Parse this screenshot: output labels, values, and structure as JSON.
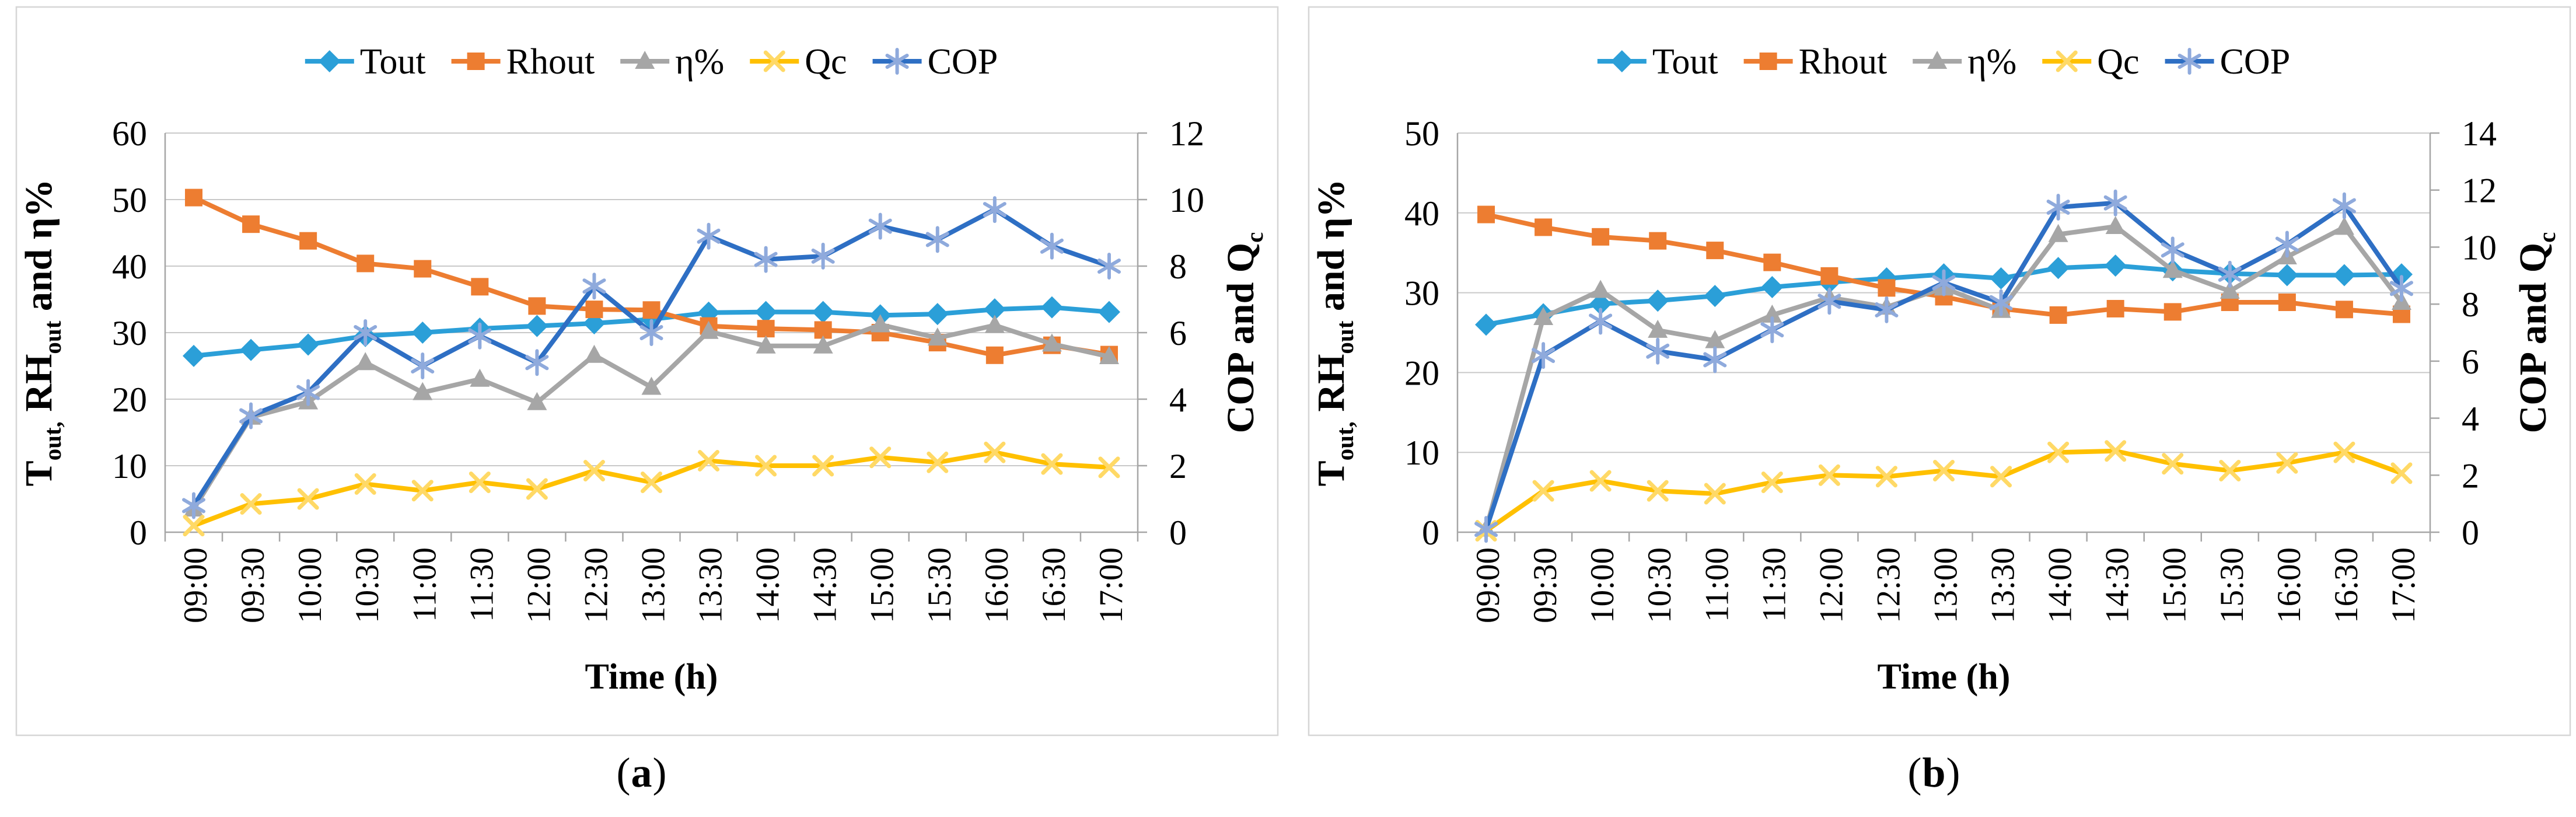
{
  "figure": {
    "captions": [
      {
        "open": "(",
        "letter": "a",
        "close": ")"
      },
      {
        "open": "(",
        "letter": "b",
        "close": ")"
      }
    ]
  },
  "style": {
    "grid_color": "#C9C9C9",
    "axis_color": "#A6A6A6",
    "border_color": "#D6D6D6",
    "text_color": "#000000"
  },
  "chart_data": [
    {
      "type": "line",
      "panel": "a",
      "x_axis_label": "Time (h)",
      "categories": [
        "09:00",
        "09:30",
        "10:00",
        "10:30",
        "11:00",
        "11:30",
        "12:00",
        "12:30",
        "13:00",
        "13:30",
        "14:00",
        "14:30",
        "15:00",
        "15:30",
        "16:00",
        "16:30",
        "17:00"
      ],
      "left_axis": {
        "label": "Tout, RHout and η%",
        "label_parts": [
          {
            "t": "T"
          },
          {
            "t": "out,",
            "sub": true
          },
          {
            "t": " RH"
          },
          {
            "t": "out",
            "sub": true
          },
          {
            "t": " and η%"
          }
        ],
        "min": 0,
        "max": 60,
        "step": 10,
        "ticks": [
          "60",
          "50",
          "40",
          "30",
          "20",
          "10",
          "0"
        ]
      },
      "right_axis": {
        "label": "COP and Qc",
        "label_parts": [
          {
            "t": "COP and Q"
          },
          {
            "t": "c",
            "sub": true
          }
        ],
        "min": 0,
        "max": 12,
        "step": 2,
        "ticks": [
          "12",
          "10",
          "8",
          "6",
          "4",
          "2",
          "0"
        ]
      },
      "legend_position": "top",
      "grid": true,
      "series": [
        {
          "name": "Tout",
          "axis": "left",
          "color": "#2B9FD8",
          "marker": "diamond",
          "marker_color": "#2B9FD8",
          "values": [
            26.5,
            27.4,
            28.2,
            29.5,
            30,
            30.6,
            31,
            31.4,
            32,
            33,
            33.1,
            33.1,
            32.6,
            32.8,
            33.5,
            33.8,
            33.1
          ]
        },
        {
          "name": "Rhout",
          "axis": "left",
          "color": "#ED7D31",
          "marker": "square",
          "marker_color": "#ED7D31",
          "values": [
            50.3,
            46.3,
            43.8,
            40.4,
            39.6,
            36.9,
            34,
            33.5,
            33.4,
            31,
            30.6,
            30.4,
            30,
            28.5,
            26.6,
            28.1,
            26.7
          ]
        },
        {
          "name": "η%",
          "axis": "left",
          "color": "#A6A6A6",
          "marker": "triangle",
          "marker_color": "#A6A6A6",
          "values": [
            3.5,
            17.3,
            19.6,
            25.5,
            21,
            23,
            19.5,
            26.6,
            21.8,
            30.2,
            28,
            28,
            31.2,
            29.2,
            31.1,
            28.3,
            26.4
          ]
        },
        {
          "name": "Qc",
          "axis": "right",
          "color": "#FFC000",
          "marker": "x",
          "marker_color": "#FFD966",
          "values": [
            0.2,
            0.85,
            1,
            1.45,
            1.25,
            1.5,
            1.3,
            1.85,
            1.5,
            2.15,
            2,
            2,
            2.25,
            2.1,
            2.4,
            2.05,
            1.95
          ]
        },
        {
          "name": "COP",
          "axis": "right",
          "color": "#2E6FC4",
          "marker": "asterisk",
          "marker_color": "#8FAADC",
          "values": [
            0.8,
            3.5,
            4.2,
            6,
            5,
            5.9,
            5.1,
            7.4,
            6,
            8.9,
            8.2,
            8.3,
            9.2,
            8.8,
            9.7,
            8.6,
            8
          ]
        }
      ]
    },
    {
      "type": "line",
      "panel": "b",
      "x_axis_label": "Time (h)",
      "categories": [
        "09:00",
        "09:30",
        "10:00",
        "10:30",
        "11:00",
        "11:30",
        "12:00",
        "12:30",
        "13:00",
        "13:30",
        "14:00",
        "14:30",
        "15:00",
        "15:30",
        "16:00",
        "16:30",
        "17:00"
      ],
      "left_axis": {
        "label": "Tout, RHout and η%",
        "label_parts": [
          {
            "t": "T"
          },
          {
            "t": "out,",
            "sub": true
          },
          {
            "t": " RH"
          },
          {
            "t": "out",
            "sub": true
          },
          {
            "t": " and η%"
          }
        ],
        "min": 0,
        "max": 50,
        "step": 10,
        "ticks": [
          "50",
          "40",
          "30",
          "20",
          "10",
          "0"
        ]
      },
      "right_axis": {
        "label": "COP and Qc",
        "label_parts": [
          {
            "t": "COP and Q"
          },
          {
            "t": "c",
            "sub": true
          }
        ],
        "min": 0,
        "max": 14,
        "step": 2,
        "ticks": [
          "14",
          "12",
          "10",
          "8",
          "6",
          "4",
          "2",
          "0"
        ]
      },
      "legend_position": "top",
      "grid": true,
      "series": [
        {
          "name": "Tout",
          "axis": "left",
          "color": "#2B9FD8",
          "marker": "diamond",
          "marker_color": "#2B9FD8",
          "values": [
            26,
            27.3,
            28.6,
            29,
            29.6,
            30.7,
            31.3,
            31.8,
            32.3,
            31.8,
            33.1,
            33.4,
            32.8,
            32.4,
            32.2,
            32.2,
            32.3
          ]
        },
        {
          "name": "Rhout",
          "axis": "left",
          "color": "#ED7D31",
          "marker": "square",
          "marker_color": "#ED7D31",
          "values": [
            39.8,
            38.2,
            37,
            36.5,
            35.3,
            33.8,
            32.1,
            30.6,
            29.5,
            28,
            27.2,
            28,
            27.6,
            28.8,
            28.8,
            27.9,
            27.3
          ]
        },
        {
          "name": "η%",
          "axis": "left",
          "color": "#A6A6A6",
          "marker": "triangle",
          "marker_color": "#A6A6A6",
          "values": [
            0.4,
            26.9,
            30.3,
            25.3,
            24,
            27.2,
            29.4,
            28.2,
            30.6,
            27.8,
            37.3,
            38.3,
            32.8,
            30.2,
            34.5,
            38.2,
            28.8
          ]
        },
        {
          "name": "Qc",
          "axis": "right",
          "color": "#FFC000",
          "marker": "x",
          "marker_color": "#FFD966",
          "values": [
            0.05,
            1.45,
            1.8,
            1.45,
            1.35,
            1.75,
            2,
            1.95,
            2.16,
            1.95,
            2.8,
            2.85,
            2.4,
            2.16,
            2.43,
            2.8,
            2.07
          ]
        },
        {
          "name": "COP",
          "axis": "right",
          "color": "#2E6FC4",
          "marker": "asterisk",
          "marker_color": "#8FAADC",
          "values": [
            0.1,
            6.2,
            7.4,
            6.35,
            6.05,
            7.1,
            8.1,
            7.8,
            8.75,
            8.05,
            11.4,
            11.55,
            9.9,
            9.05,
            10.1,
            11.45,
            8.55
          ]
        }
      ]
    }
  ]
}
